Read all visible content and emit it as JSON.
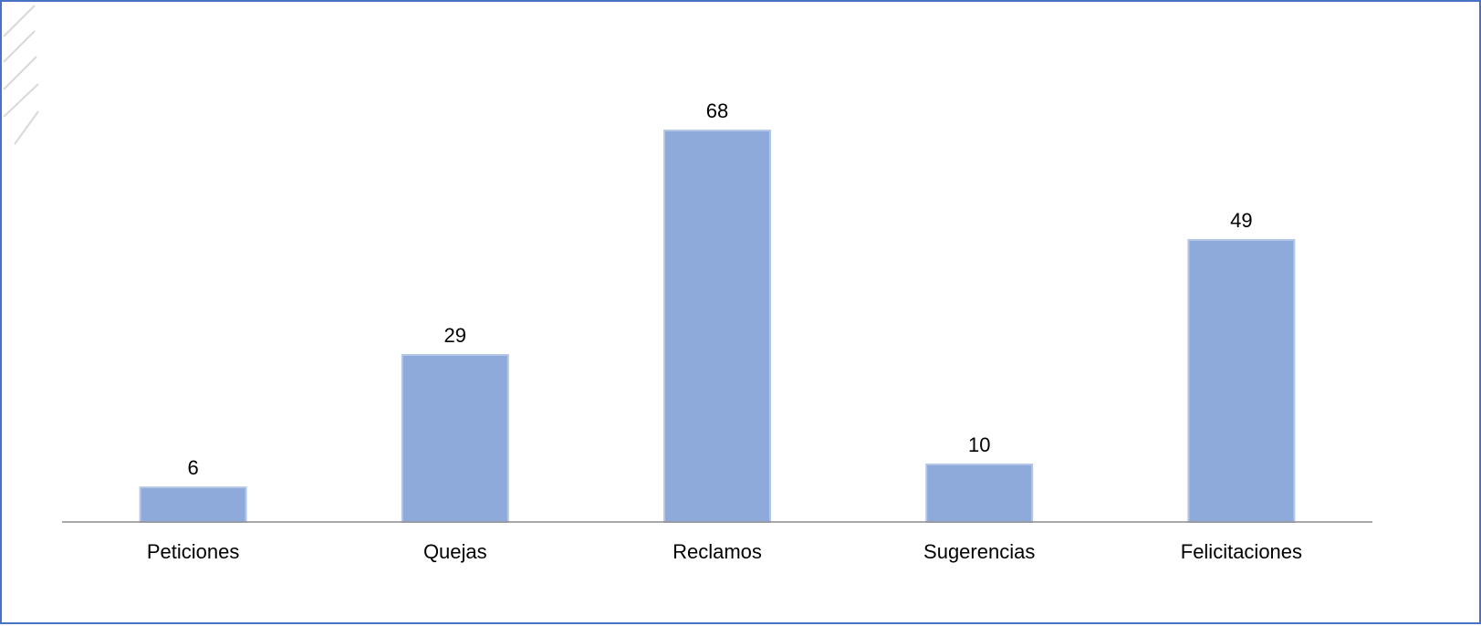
{
  "chart_data": {
    "type": "bar",
    "title": "",
    "xlabel": "",
    "ylabel": "",
    "categories": [
      "Peticiones",
      "Quejas",
      "Reclamos",
      "Sugerencias",
      "Felicitaciones"
    ],
    "values": [
      6,
      29,
      68,
      10,
      49
    ],
    "data_labels": [
      "6",
      "29",
      "68",
      "10",
      "49"
    ],
    "ylim": [
      0,
      68
    ],
    "grid": false,
    "legend": "none",
    "colors": {
      "bar_fill": "#8eaadb",
      "bar_stroke": "#b4c7e7",
      "axis": "#8c8c8c",
      "frame": "#4a72c4",
      "text": "#000000",
      "hatch": "#d9d9d9"
    }
  }
}
